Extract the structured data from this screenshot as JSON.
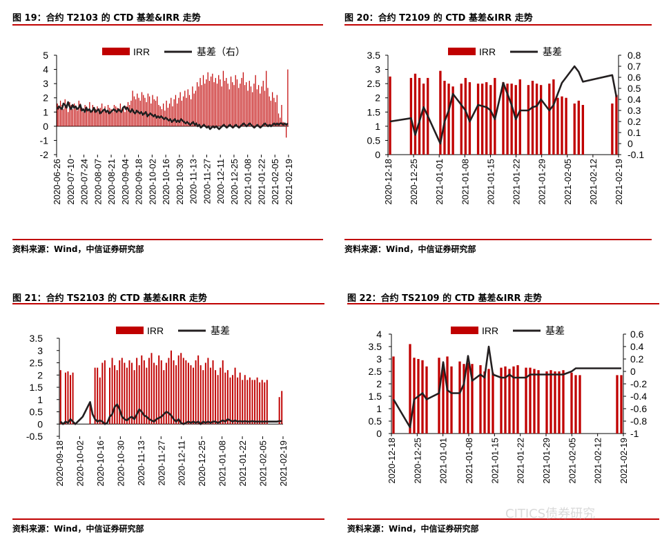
{
  "colors": {
    "bar": "#c00000",
    "line": "#231f20",
    "rule": "#c00000"
  },
  "watermark": "CITICS债券研究",
  "panels": [
    {
      "title": "图 19：合约 T2103 的 CTD 基差&IRR 走势",
      "source": "资料来源：Wind，中信证券研究部"
    },
    {
      "title": "图 20：合约 T2109 的 CTD 基差&IRR 走势",
      "source": "资料来源：Wind，中信证券研究部"
    },
    {
      "title": "图 21：合约 TS2103 的 CTD 基差&IRR 走势",
      "source": "资料来源：Wind，中信证券研究部"
    },
    {
      "title": "图 22：合约 TS2109 的 CTD 基差&IRR 走势",
      "source": "资料来源：Wind，中信证券研究部"
    }
  ],
  "chart_data": [
    {
      "type": "bar",
      "legend": [
        "IRR",
        "基差（右）"
      ],
      "legend_position": "top-center",
      "x_ticks": [
        "2020-06-26",
        "2020-07-10",
        "2020-07-24",
        "2020-08-07",
        "2020-08-21",
        "2020-09-04",
        "2020-09-18",
        "2020-10-02",
        "2020-10-16",
        "2020-10-30",
        "2020-11-13",
        "2020-11-27",
        "2020-12-11",
        "2020-12-25",
        "2021-01-08",
        "2021-01-22",
        "2021-02-05",
        "2021-02-19"
      ],
      "ylim": [
        -2,
        5
      ],
      "y_ticks": [
        "5",
        "4",
        "3",
        "2",
        "1",
        "0",
        "-1",
        "-2"
      ],
      "y_tick_values": [
        5,
        4,
        3,
        2,
        1,
        0,
        -1,
        -2
      ],
      "y2_axis": false,
      "series": [
        {
          "name": "IRR",
          "type": "bar",
          "axis": "left",
          "values": [
            1.6,
            1.4,
            1.8,
            1.5,
            1.2,
            1.9,
            1.3,
            1.0,
            1.7,
            1.5,
            1.2,
            1.6,
            1.4,
            1.1,
            1.8,
            1.6,
            1.3,
            1.0,
            1.5,
            1.4,
            1.2,
            1.7,
            1.1,
            1.5,
            1.3,
            1.2,
            1.4,
            1.0,
            1.3,
            1.6,
            1.2,
            1.4,
            1.1,
            1.5,
            1.3,
            1.2,
            1.0,
            1.5,
            1.4,
            1.3,
            1.1,
            1.6,
            1.2,
            1.3,
            1.0,
            1.4,
            1.7,
            1.5,
            1.8,
            2.5,
            2.1,
            1.9,
            2.3,
            2.0,
            1.8,
            2.4,
            2.2,
            2.0,
            1.7,
            2.3,
            2.1,
            1.6,
            2.2,
            1.9,
            1.8,
            2.1,
            1.5,
            1.4,
            1.2,
            1.6,
            1.1,
            1.8,
            1.3,
            1.6,
            2.0,
            1.4,
            1.9,
            2.2,
            1.6,
            2.0,
            2.4,
            1.8,
            2.1,
            2.5,
            2.0,
            2.6,
            2.2,
            1.9,
            2.8,
            2.3,
            2.5,
            3.1,
            2.8,
            3.4,
            2.9,
            3.6,
            3.0,
            3.3,
            3.8,
            3.2,
            3.5,
            3.7,
            3.1,
            3.4,
            3.0,
            3.6,
            3.3,
            2.8,
            3.9,
            3.2,
            3.4,
            3.0,
            2.6,
            3.5,
            3.1,
            2.9,
            3.6,
            3.3,
            2.7,
            3.0,
            3.4,
            3.8,
            2.9,
            3.1,
            2.5,
            3.2,
            2.8,
            2.4,
            3.0,
            3.6,
            2.6,
            2.9,
            2.3,
            2.8,
            3.2,
            2.5,
            3.9,
            2.7,
            2.1,
            1.8,
            2.4,
            2.0,
            1.7,
            2.2,
            0.9,
            0.6,
            1.5,
            0.3,
            0.1,
            -0.8,
            4.0
          ]
        },
        {
          "name": "基差（右）",
          "type": "line",
          "axis": "left",
          "values": [
            1.2,
            1.4,
            1.3,
            1.2,
            1.6,
            1.5,
            1.3,
            1.7,
            1.4,
            1.2,
            1.5,
            1.3,
            1.4,
            1.2,
            1.3,
            1.5,
            1.1,
            1.2,
            1.0,
            1.3,
            1.1,
            1.2,
            1.0,
            1.1,
            1.3,
            1.0,
            1.1,
            1.2,
            0.9,
            1.0,
            1.1,
            1.2,
            1.0,
            1.1,
            0.9,
            1.0,
            1.1,
            1.2,
            1.1,
            1.0,
            1.2,
            1.1,
            1.0,
            1.3,
            1.4,
            1.2,
            1.3,
            1.1,
            1.0,
            1.2,
            1.0,
            0.9,
            1.1,
            1.0,
            0.9,
            1.0,
            0.8,
            0.9,
            1.0,
            0.7,
            0.8,
            0.9,
            0.8,
            0.7,
            0.8,
            0.6,
            0.7,
            0.6,
            0.7,
            0.6,
            0.5,
            0.6,
            0.5,
            0.4,
            0.5,
            0.3,
            0.4,
            0.5,
            0.3,
            0.4,
            0.3,
            0.5,
            0.4,
            0.3,
            0.2,
            0.3,
            0.2,
            0.1,
            0.2,
            0.3,
            0.1,
            0.2,
            0.0,
            0.1,
            -0.1,
            0.0,
            0.1,
            0.0,
            -0.1,
            0.0,
            -0.2,
            -0.1,
            0.0,
            -0.1,
            0.0,
            -0.1,
            -0.2,
            -0.1,
            0.0,
            0.1,
            0.0,
            -0.1,
            0.0,
            0.1,
            0.0,
            -0.1,
            0.0,
            0.1,
            0.0,
            -0.1,
            0.0,
            0.1,
            0.2,
            0.1,
            0.0,
            0.1,
            0.2,
            0.1,
            0.0,
            -0.1,
            0.0,
            0.1,
            0.0,
            -0.1,
            0.0,
            0.1,
            0.2,
            0.1,
            0.0,
            0.1,
            0.0,
            0.1,
            0.2,
            0.1,
            0.2,
            0.1,
            0.2,
            0.2,
            0.1,
            0.2,
            0.1,
            0.2
          ]
        }
      ]
    },
    {
      "type": "bar",
      "legend": [
        "IRR",
        "基差"
      ],
      "legend_position": "top-center",
      "x_ticks": [
        "2020-12-18",
        "2020-12-25",
        "2021-01-01",
        "2021-01-08",
        "2021-01-15",
        "2021-01-22",
        "2021-01-29",
        "2021-02-05",
        "2021-02-12",
        "2021-02-19"
      ],
      "ylim": [
        0,
        3.5
      ],
      "y_ticks": [
        "3.5",
        "3",
        "2.5",
        "2",
        "1.5",
        "1",
        "0.5",
        "0"
      ],
      "y_tick_values": [
        3.5,
        3,
        2.5,
        2,
        1.5,
        1,
        0.5,
        0
      ],
      "y2lim": [
        -0.1,
        0.8
      ],
      "y2_ticks": [
        "0.8",
        "0.7",
        "0.6",
        "0.5",
        "0.4",
        "0.3",
        "0.2",
        "0.1",
        "0",
        "-0.1"
      ],
      "y2_tick_values": [
        0.8,
        0.7,
        0.6,
        0.5,
        0.4,
        0.3,
        0.2,
        0.1,
        0,
        -0.1
      ],
      "series": [
        {
          "name": "IRR",
          "type": "bar",
          "axis": "left",
          "values": [
            2.75,
            null,
            null,
            null,
            null,
            2.7,
            2.85,
            2.7,
            2.5,
            2.7,
            null,
            null,
            2.95,
            2.6,
            2.5,
            2.4,
            null,
            2.5,
            2.7,
            2.55,
            null,
            2.5,
            2.5,
            2.55,
            2.45,
            2.7,
            null,
            2.55,
            2.5,
            2.5,
            2.45,
            2.65,
            null,
            2.45,
            2.6,
            2.5,
            2.45,
            null,
            2.5,
            2.65,
            2.0,
            2.05,
            2.0,
            null,
            1.8,
            1.9,
            1.75,
            null,
            null,
            null,
            null,
            null,
            null,
            1.8,
            2.1
          ]
        },
        {
          "name": "基差",
          "type": "line",
          "axis": "right",
          "values": [
            0.2,
            null,
            null,
            null,
            null,
            0.23,
            0.08,
            0.2,
            0.33,
            0.25,
            null,
            null,
            0.0,
            0.2,
            0.3,
            0.45,
            null,
            0.35,
            0.3,
            0.2,
            null,
            0.35,
            0.34,
            0.33,
            0.3,
            0.22,
            null,
            0.55,
            0.45,
            0.35,
            0.22,
            0.3,
            null,
            0.3,
            0.33,
            0.34,
            0.4,
            null,
            0.3,
            0.35,
            0.45,
            0.55,
            0.6,
            null,
            0.7,
            0.65,
            0.56,
            null,
            null,
            null,
            null,
            null,
            null,
            0.62,
            0.42
          ]
        }
      ]
    },
    {
      "type": "bar",
      "legend": [
        "IRR",
        "基差"
      ],
      "legend_position": "top-center",
      "x_ticks": [
        "2020-09-18",
        "2020-10-02",
        "2020-10-16",
        "2020-10-30",
        "2020-11-13",
        "2020-11-27",
        "2020-12-11",
        "2020-12-25",
        "2021-01-08",
        "2021-01-22",
        "2021-02-05",
        "2021-02-19"
      ],
      "ylim": [
        -0.5,
        3.5
      ],
      "y_ticks": [
        "3.5",
        "3",
        "2.5",
        "2",
        "1.5",
        "1",
        "0.5",
        "0",
        "-0.5"
      ],
      "y_tick_values": [
        3.5,
        3,
        2.5,
        2,
        1.5,
        1,
        0.5,
        0,
        -0.5
      ],
      "y2_axis": false,
      "series": [
        {
          "name": "IRR",
          "type": "bar",
          "axis": "left",
          "values": [
            2.2,
            null,
            2.1,
            2.15,
            2.0,
            2.1,
            null,
            null,
            null,
            null,
            null,
            null,
            0.8,
            null,
            2.3,
            2.3,
            1.9,
            2.5,
            2.6,
            null,
            2.3,
            2.7,
            2.4,
            2.2,
            2.6,
            2.7,
            2.5,
            2.3,
            2.6,
            2.5,
            2.2,
            2.7,
            2.4,
            2.8,
            2.6,
            2.3,
            2.7,
            2.9,
            2.5,
            2.4,
            2.8,
            2.6,
            2.2,
            2.5,
            2.7,
            3.0,
            2.6,
            2.4,
            2.8,
            2.9,
            2.7,
            2.6,
            2.5,
            2.4,
            2.3,
            2.6,
            2.8,
            2.4,
            2.2,
            2.5,
            2.7,
            2.3,
            2.6,
            2.2,
            2.0,
            2.3,
            2.6,
            2.1,
            2.2,
            1.9,
            2.0,
            2.3,
            1.9,
            2.1,
            1.8,
            2.0,
            1.8,
            1.9,
            1.8,
            1.8,
            1.9,
            1.7,
            1.8,
            1.7,
            1.8,
            null,
            null,
            null,
            null,
            1.1,
            1.35
          ]
        },
        {
          "name": "基差",
          "type": "line",
          "axis": "left",
          "values": [
            0.1,
            0.0,
            0.1,
            0.05,
            0.2,
            0.1,
            0.0,
            0.1,
            0.2,
            0.3,
            0.5,
            0.7,
            0.9,
            0.4,
            0.2,
            0.1,
            0.15,
            0.1,
            0.0,
            0.05,
            0.3,
            0.4,
            0.7,
            0.8,
            0.6,
            0.3,
            0.2,
            0.15,
            0.25,
            0.3,
            0.2,
            0.4,
            0.6,
            0.5,
            0.35,
            0.3,
            0.2,
            0.15,
            0.1,
            0.2,
            0.25,
            0.3,
            0.4,
            0.5,
            0.45,
            0.35,
            0.2,
            0.1,
            0.2,
            0.05,
            0.0,
            0.05,
            0.1,
            0.05,
            0.1,
            0.05,
            0.1,
            0.0,
            0.1,
            0.05,
            0.1,
            0.05,
            0.1,
            0.1,
            0.05,
            0.1,
            0.15,
            0.1,
            0.2,
            0.15,
            0.1,
            0.15,
            0.1,
            0.12,
            0.1,
            0.12,
            0.1,
            0.1,
            0.12,
            0.1,
            0.1,
            0.1,
            0.1,
            0.1,
            0.1,
            0.1,
            0.1,
            0.1,
            0.1,
            0.12,
            0.12
          ]
        }
      ]
    },
    {
      "type": "bar",
      "legend": [
        "IRR",
        "基差"
      ],
      "legend_position": "top-center",
      "x_ticks": [
        "2020-12-18",
        "2020-12-25",
        "2021-01-01",
        "2021-01-08",
        "2021-01-15",
        "2021-01-22",
        "2021-01-29",
        "2021-02-05",
        "2021-02-12",
        "2021-02-19"
      ],
      "ylim": [
        0,
        4
      ],
      "y_ticks": [
        "4",
        "3.5",
        "3",
        "2.5",
        "2",
        "1.5",
        "1",
        "0.5",
        "0"
      ],
      "y_tick_values": [
        4,
        3.5,
        3,
        2.5,
        2,
        1.5,
        1,
        0.5,
        0
      ],
      "y2lim": [
        -1,
        0.6
      ],
      "y2_ticks": [
        "0.6",
        "0.4",
        "0.2",
        "0",
        "-0.2",
        "-0.4",
        "-0.6",
        "-0.8",
        "-1"
      ],
      "y2_tick_values": [
        0.6,
        0.4,
        0.2,
        0,
        -0.2,
        -0.4,
        -0.6,
        -0.8,
        -1
      ],
      "series": [
        {
          "name": "IRR",
          "type": "bar",
          "axis": "left",
          "values": [
            3.1,
            null,
            null,
            null,
            3.6,
            3.05,
            3.0,
            2.95,
            2.7,
            null,
            null,
            3.05,
            2.8,
            3.1,
            2.7,
            null,
            2.9,
            2.8,
            2.85,
            2.8,
            null,
            2.75,
            2.5,
            2.6,
            2.45,
            null,
            2.65,
            2.7,
            2.6,
            2.7,
            2.75,
            null,
            2.65,
            2.65,
            2.6,
            2.55,
            null,
            2.5,
            2.55,
            2.5,
            2.5,
            2.55,
            null,
            2.45,
            2.35,
            2.35,
            null,
            null,
            null,
            null,
            null,
            null,
            null,
            null,
            2.35,
            2.35
          ]
        },
        {
          "name": "基差",
          "type": "line",
          "axis": "right",
          "values": [
            -0.45,
            null,
            null,
            null,
            -0.9,
            -0.45,
            -0.4,
            -0.35,
            -0.45,
            null,
            null,
            -0.35,
            0.15,
            -0.3,
            -0.35,
            null,
            -0.35,
            -0.2,
            0.25,
            -0.15,
            null,
            -0.05,
            -0.1,
            0.4,
            -0.05,
            null,
            -0.1,
            -0.1,
            -0.05,
            -0.1,
            -0.1,
            null,
            -0.1,
            -0.05,
            -0.05,
            -0.05,
            null,
            -0.05,
            -0.05,
            -0.05,
            -0.05,
            -0.05,
            null,
            0.0,
            0.05,
            0.05,
            null,
            null,
            null,
            null,
            null,
            null,
            null,
            null,
            0.05,
            0.05
          ]
        }
      ]
    }
  ]
}
